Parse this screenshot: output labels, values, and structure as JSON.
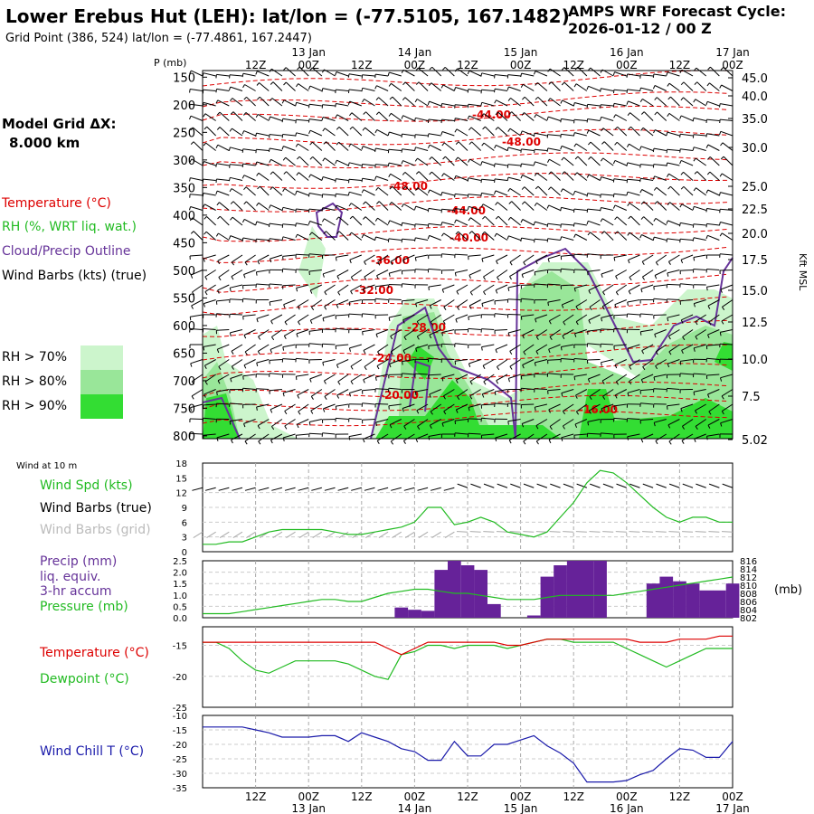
{
  "header": {
    "station_title": "Lower Erebus Hut (LEH):  lat/lon = (-77.5105, 167.1482)",
    "grid_point": "Grid Point (386, 524) lat/lon = (-77.4861, 167.2447)",
    "forecast_line1": "AMPS WRF Forecast Cycle:",
    "forecast_line2": "2026-01-12 / 00  Z"
  },
  "left_panel": {
    "model_grid_label": "Model Grid ΔX:",
    "model_grid_value": "8.000 km",
    "legend_temperature": "Temperature (°C)",
    "legend_rh": "RH (%, WRT liq. wat.)",
    "legend_cloud": "Cloud/Precip Outline",
    "legend_wind": "Wind Barbs (kts) (true)",
    "rh_levels": [
      "RH > 70%",
      "RH > 80%",
      "RH > 90%"
    ],
    "colors": {
      "temperature": "#dd0000",
      "rh": "#22bb22",
      "cloud": "#663399",
      "wind": "#000000",
      "rh70": "#ccf5cc",
      "rh80": "#99e699",
      "rh90": "#33dd33"
    }
  },
  "time_axis": {
    "hour_labels": [
      "12Z",
      "00Z",
      "12Z",
      "00Z",
      "12Z",
      "00Z",
      "12Z",
      "00Z",
      "12Z",
      "00Z"
    ],
    "date_labels": [
      "13 Jan",
      "14 Jan",
      "15 Jan",
      "16 Jan",
      "17 Jan"
    ]
  },
  "chart_data": [
    {
      "type": "heatmap",
      "name": "vertical-cross-section",
      "yaxis_label": "P (mb)",
      "pressure_ticks": [
        150,
        200,
        250,
        300,
        350,
        400,
        450,
        500,
        550,
        600,
        650,
        700,
        750,
        800
      ],
      "right_axis_label": "Kft MSL",
      "height_ticks": [
        "45.0",
        "40.0",
        "35.0",
        "30.0",
        "25.0",
        "22.5",
        "20.0",
        "17.5",
        "15.0",
        "12.5",
        "10.0",
        "7.5",
        "5.02"
      ],
      "temperature_contour_labels": [
        "-44.00",
        "-48.00",
        "-48.00",
        "-44.00",
        "-40.00",
        "-36.00",
        "-32.00",
        "-28.00",
        "-24.00",
        "-20.00",
        "-16.00"
      ]
    },
    {
      "type": "line",
      "name": "wind-at-10m",
      "title": "Wind at 10 m",
      "legend": [
        "Wind Spd (kts)",
        "Wind Barbs (true)",
        "Wind Barbs (grid)"
      ],
      "y_ticks": [
        0,
        3,
        6,
        9,
        12,
        15,
        18
      ],
      "ylim": [
        0,
        18
      ],
      "series": [
        {
          "name": "Wind Spd (kts)",
          "color": "#22bb22",
          "values": [
            1.5,
            1.5,
            2,
            2,
            3,
            4,
            4.5,
            4.5,
            4.5,
            4.5,
            4,
            3.5,
            3.5,
            4,
            4.5,
            5,
            6,
            9,
            9,
            5.5,
            6,
            7,
            6,
            4,
            3.5,
            3,
            4,
            7,
            10,
            14,
            16.5,
            16,
            14,
            11.5,
            9,
            7,
            6,
            7,
            7,
            6,
            6
          ]
        }
      ]
    },
    {
      "type": "bar",
      "name": "precip-pressure",
      "legend": [
        "Precip (mm)",
        "liq. equiv.",
        "3-hr accum",
        "Pressure (mb)"
      ],
      "y_ticks": [
        0.0,
        0.5,
        1.0,
        1.5,
        2.0,
        2.5
      ],
      "ylim": [
        0,
        2.5
      ],
      "right_ticks": [
        802,
        804,
        806,
        808,
        810,
        812,
        814,
        816
      ],
      "right_unit": "(mb)",
      "precip": [
        0,
        0,
        0,
        0,
        0,
        0,
        0,
        0,
        0,
        0,
        0,
        0,
        0,
        0,
        0,
        0.45,
        0.35,
        0.3,
        2.1,
        2.5,
        2.3,
        2.1,
        0.6,
        0,
        0,
        0.1,
        1.8,
        2.3,
        2.5,
        2.5,
        2.5,
        0,
        0,
        0,
        1.5,
        1.8,
        1.6,
        1.5,
        1.2,
        1.2,
        1.5
      ],
      "pressure": [
        803,
        803,
        803,
        803.5,
        804,
        804.5,
        805,
        805.5,
        806,
        806.5,
        806.5,
        806,
        806,
        807,
        808,
        808.5,
        809,
        809,
        808.5,
        808,
        808,
        807.5,
        807,
        806.5,
        806.5,
        806.5,
        807,
        807.5,
        807.5,
        807.5,
        807.5,
        807.5,
        808,
        808.5,
        809,
        809.5,
        810,
        810.5,
        811,
        811.5,
        812
      ]
    },
    {
      "type": "line",
      "name": "temperature-dewpoint",
      "legend": [
        "Temperature (°C)",
        "Dewpoint (°C)"
      ],
      "y_ticks": [
        -15,
        -20,
        -25
      ],
      "ylim": [
        -25,
        -12
      ],
      "series": [
        {
          "name": "Temperature (°C)",
          "color": "#dd0000",
          "values": [
            -14.5,
            -14.5,
            -14.5,
            -14.5,
            -14.5,
            -14.5,
            -14.5,
            -14.5,
            -14.5,
            -14.5,
            -14.5,
            -14.5,
            -14.5,
            -14.5,
            -15.5,
            -16.5,
            -15.5,
            -14.5,
            -14.5,
            -14.5,
            -14.5,
            -14.5,
            -14.5,
            -15,
            -15,
            -14.5,
            -14,
            -14,
            -14,
            -14,
            -14,
            -14,
            -14,
            -14.5,
            -14.5,
            -14.5,
            -14,
            -14,
            -14,
            -13.5,
            -13.5
          ]
        },
        {
          "name": "Dewpoint (°C)",
          "color": "#22bb22",
          "values": [
            -14.5,
            -14.5,
            -15.5,
            -17.5,
            -19,
            -19.5,
            -18.5,
            -17.5,
            -17.5,
            -17.5,
            -17.5,
            -18,
            -19,
            -20,
            -20.5,
            -16.5,
            -16,
            -15,
            -15,
            -15.5,
            -15,
            -15,
            -15,
            -15.5,
            -15,
            -14.5,
            -14,
            -14,
            -14.5,
            -14.5,
            -14.5,
            -14.5,
            -15.5,
            -16.5,
            -17.5,
            -18.5,
            -17.5,
            -16.5,
            -15.5,
            -15.5,
            -15.5
          ]
        }
      ]
    },
    {
      "type": "line",
      "name": "wind-chill",
      "legend": [
        "Wind Chill T (°C)"
      ],
      "y_ticks": [
        -10,
        -15,
        -20,
        -25,
        -30,
        -35
      ],
      "ylim": [
        -35,
        -10
      ],
      "series": [
        {
          "name": "Wind Chill T (°C)",
          "color": "#1a1aaa",
          "values": [
            -14,
            -14,
            -14,
            -14,
            -15,
            -16,
            -17.5,
            -17.5,
            -17.5,
            -17,
            -17,
            -19,
            -16,
            -17.5,
            -19,
            -21.5,
            -22.5,
            -25.5,
            -25.5,
            -19,
            -24,
            -24,
            -20,
            -20,
            -18.5,
            -17,
            -20.5,
            -23,
            -26.5,
            -33,
            -33,
            -33,
            -32.5,
            -30.5,
            -29,
            -25,
            -21.5,
            -22,
            -24.5,
            -24.5,
            -19
          ]
        }
      ]
    }
  ]
}
